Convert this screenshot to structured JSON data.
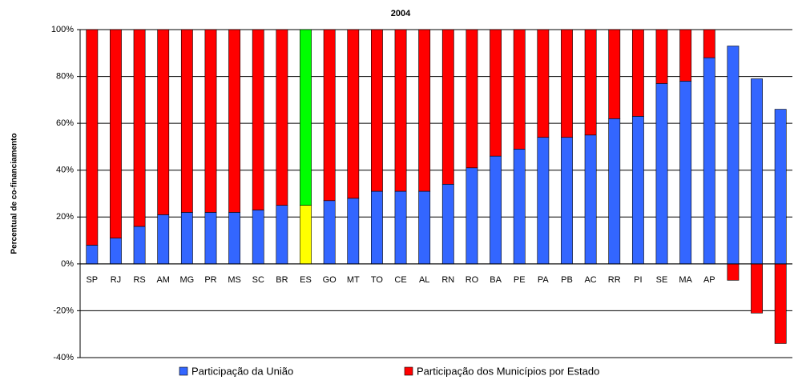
{
  "chart_data": {
    "type": "stacked-bar",
    "title": "2004",
    "y_label": "Percentual de co-financiamento",
    "categories": [
      "SP",
      "RJ",
      "RS",
      "AM",
      "MG",
      "PR",
      "MS",
      "SC",
      "BR",
      "ES",
      "GO",
      "MT",
      "TO",
      "CE",
      "AL",
      "RN",
      "RO",
      "BA",
      "PE",
      "PA",
      "PB",
      "AC",
      "RR",
      "PI",
      "SE",
      "MA",
      "AP",
      null,
      null,
      null
    ],
    "series": [
      {
        "name": "Participação da União",
        "color": "#3366ff",
        "point_colors": {
          "9": "#ffff00"
        },
        "values": [
          8,
          11,
          16,
          21,
          22,
          22,
          22,
          23,
          25,
          25,
          27,
          28,
          31,
          31,
          31,
          34,
          41,
          46,
          49,
          54,
          54,
          55,
          62,
          63,
          77,
          78,
          88,
          93,
          79,
          66
        ]
      },
      {
        "name": "Participação dos Municípios por Estado",
        "color": "#ff0000",
        "point_colors": {
          "9": "#00ff00"
        },
        "values": [
          92,
          89,
          84,
          79,
          78,
          78,
          78,
          77,
          75,
          75,
          73,
          72,
          69,
          69,
          69,
          66,
          59,
          54,
          51,
          46,
          46,
          45,
          38,
          37,
          23,
          22,
          12,
          -7,
          -21,
          -34
        ]
      }
    ],
    "ylim": [
      -40,
      100
    ],
    "yticks": [
      {
        "value": -40,
        "label": "-40%"
      },
      {
        "value": -20,
        "label": "-20%"
      },
      {
        "value": 0,
        "label": "0%"
      },
      {
        "value": 20,
        "label": "20%"
      },
      {
        "value": 40,
        "label": "40%"
      },
      {
        "value": 60,
        "label": "60%"
      },
      {
        "value": 80,
        "label": "80%"
      },
      {
        "value": 100,
        "label": "100%"
      }
    ],
    "grid": true,
    "legend": "bottom"
  }
}
